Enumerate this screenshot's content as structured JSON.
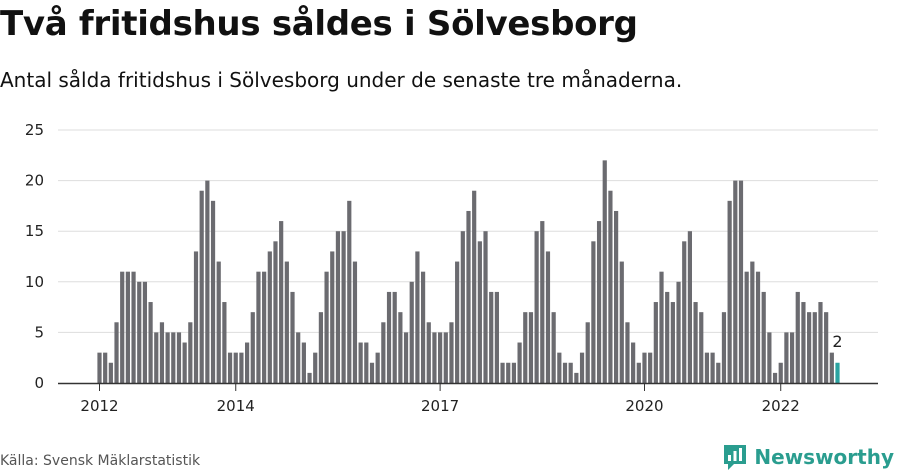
{
  "title": "Två fritidshus såldes i Sölvesborg",
  "subtitle": "Antal sålda fritidshus i Sölvesborg under de senaste tre månaderna.",
  "source": "Källa: Svensk Mäklarstatistik",
  "brand": {
    "name": "Newsworthy",
    "icon": "newsworthy-logo-icon",
    "color": "#2a9d8f"
  },
  "colors": {
    "bar": "#6b6b70",
    "highlight": "#2ba3a1",
    "grid": "#dddddd",
    "axis": "#333333"
  },
  "chart_data": {
    "type": "bar",
    "title": "Två fritidshus såldes i Sölvesborg",
    "xlabel": "",
    "ylabel": "",
    "ylim": [
      0,
      25
    ],
    "yticks": [
      "0",
      "5",
      "10",
      "15",
      "20",
      "25"
    ],
    "grid": true,
    "xticks": [
      "2012",
      "2014",
      "2017",
      "2020",
      "2022"
    ],
    "values": [
      3,
      3,
      2,
      6,
      11,
      11,
      11,
      10,
      10,
      8,
      5,
      6,
      5,
      5,
      5,
      4,
      6,
      13,
      19,
      20,
      18,
      12,
      8,
      3,
      3,
      3,
      4,
      7,
      11,
      11,
      13,
      14,
      16,
      12,
      9,
      5,
      4,
      1,
      3,
      7,
      11,
      13,
      15,
      15,
      18,
      12,
      4,
      4,
      2,
      3,
      6,
      9,
      9,
      7,
      5,
      10,
      13,
      11,
      6,
      5,
      5,
      5,
      6,
      12,
      15,
      17,
      19,
      14,
      15,
      9,
      9,
      2,
      2,
      2,
      4,
      7,
      7,
      15,
      16,
      13,
      7,
      3,
      2,
      2,
      1,
      3,
      6,
      14,
      16,
      22,
      19,
      17,
      12,
      6,
      4,
      2,
      3,
      3,
      8,
      11,
      9,
      8,
      10,
      14,
      15,
      8,
      7,
      3,
      3,
      2,
      7,
      18,
      20,
      20,
      11,
      12,
      11,
      9,
      5,
      1,
      2,
      5,
      5,
      9,
      8,
      7,
      7,
      8,
      7,
      3,
      2
    ],
    "highlight_last": true,
    "last_value_label": "2"
  }
}
